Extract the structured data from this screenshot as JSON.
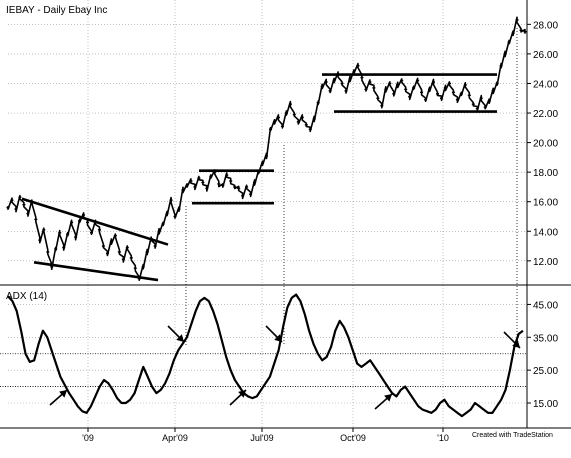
{
  "chart_data": [
    {
      "type": "line",
      "panel": "price",
      "title": "IEBAY - Daily  Ebay Inc",
      "y_ticks": [
        "28.00",
        "26.00",
        "24.00",
        "22.00",
        "20.00",
        "18.00",
        "16.00",
        "14.00",
        "12.00"
      ],
      "ylim": [
        10.5,
        28.7
      ],
      "x_ticks": [
        "'09",
        "Apr'09",
        "Jul'09",
        "Oct'09",
        "'10"
      ],
      "series": [
        {
          "values": [
            15.6,
            16.1,
            15.5,
            16.3,
            15.8,
            15.2,
            16.0,
            14.8,
            13.4,
            14.1,
            12.6,
            11.6,
            12.8,
            13.9,
            12.9,
            13.8,
            14.6,
            13.6,
            14.7,
            15.1,
            14.6,
            13.9,
            14.6,
            14.1,
            13.0,
            12.5,
            13.3,
            13.7,
            12.6,
            12.1,
            12.9,
            12.2,
            11.5,
            10.8,
            11.6,
            12.6,
            13.5,
            13.0,
            14.0,
            14.5,
            15.2,
            16.1,
            15.0,
            15.5,
            16.8,
            17.1,
            17.4,
            17.0,
            17.6,
            17.3,
            16.9,
            17.7,
            18.0,
            17.2,
            17.1,
            17.8,
            17.4,
            17.0,
            16.9,
            16.4,
            17.0,
            16.5,
            17.3,
            18.0,
            18.6,
            19.1,
            20.9,
            21.4,
            21.7,
            21.1,
            22.0,
            22.6,
            21.9,
            21.4,
            21.7,
            21.2,
            20.9,
            21.6,
            22.7,
            23.8,
            24.1,
            23.5,
            24.2,
            24.6,
            24.0,
            23.5,
            24.3,
            24.8,
            25.2,
            24.4,
            23.6,
            24.1,
            23.7,
            23.0,
            22.5,
            23.6,
            24.0,
            23.3,
            23.9,
            24.2,
            23.6,
            23.1,
            23.7,
            24.2,
            23.4,
            22.9,
            23.6,
            24.1,
            23.3,
            23.0,
            23.7,
            24.0,
            23.4,
            22.9,
            23.3,
            23.9,
            23.2,
            22.6,
            22.3,
            23.0,
            22.4,
            22.8,
            23.5,
            24.0,
            25.2,
            26.0,
            26.8,
            27.4,
            28.3,
            27.6,
            27.5
          ]
        }
      ],
      "trendlines": [
        {
          "label": "upper channel",
          "from": [
            "start",
            16.2
          ],
          "to": [
            "Apr'09",
            13.1
          ]
        },
        {
          "label": "lower channel",
          "from": [
            "start",
            11.9
          ],
          "to": [
            "Apr'09",
            10.7
          ]
        },
        {
          "label": "box top",
          "y": 18.1
        },
        {
          "label": "box bottom",
          "y": 15.9
        },
        {
          "label": "range top",
          "y": 24.6
        },
        {
          "label": "range bottom",
          "y": 22.1
        }
      ]
    },
    {
      "type": "line",
      "panel": "indicator",
      "title": "ADX (14)",
      "y_ticks": [
        "45.00",
        "35.00",
        "25.00",
        "15.00"
      ],
      "ylim": [
        8,
        50
      ],
      "reference_lines": [
        30,
        20
      ],
      "series": [
        {
          "values": [
            47.5,
            46,
            43,
            37,
            30,
            27.5,
            28,
            33,
            37,
            35,
            31,
            27,
            23,
            20.5,
            18,
            16,
            14,
            12.5,
            12,
            14,
            17,
            20,
            22,
            21,
            19,
            16.5,
            15,
            15,
            16,
            18,
            22,
            26,
            23,
            20,
            18,
            19,
            21,
            24,
            28,
            31,
            33,
            35,
            39,
            43,
            46,
            47,
            46,
            43,
            39,
            34,
            29,
            25,
            22,
            20,
            18,
            17,
            16.5,
            17,
            19,
            21,
            23,
            27,
            31,
            38,
            44,
            47,
            48,
            46,
            42,
            37,
            33,
            30,
            28,
            29,
            32,
            37,
            40,
            38,
            35,
            31,
            27,
            26,
            27,
            28,
            26,
            24,
            22,
            20,
            18,
            17,
            19,
            20,
            18,
            16,
            14,
            13,
            12.5,
            12,
            13,
            15,
            16,
            14,
            13,
            12,
            11,
            12,
            13,
            15,
            14,
            13,
            12,
            12,
            14,
            16,
            19,
            25,
            32,
            36,
            37
          ]
        }
      ],
      "annotation": "Created with TradeStation"
    }
  ]
}
